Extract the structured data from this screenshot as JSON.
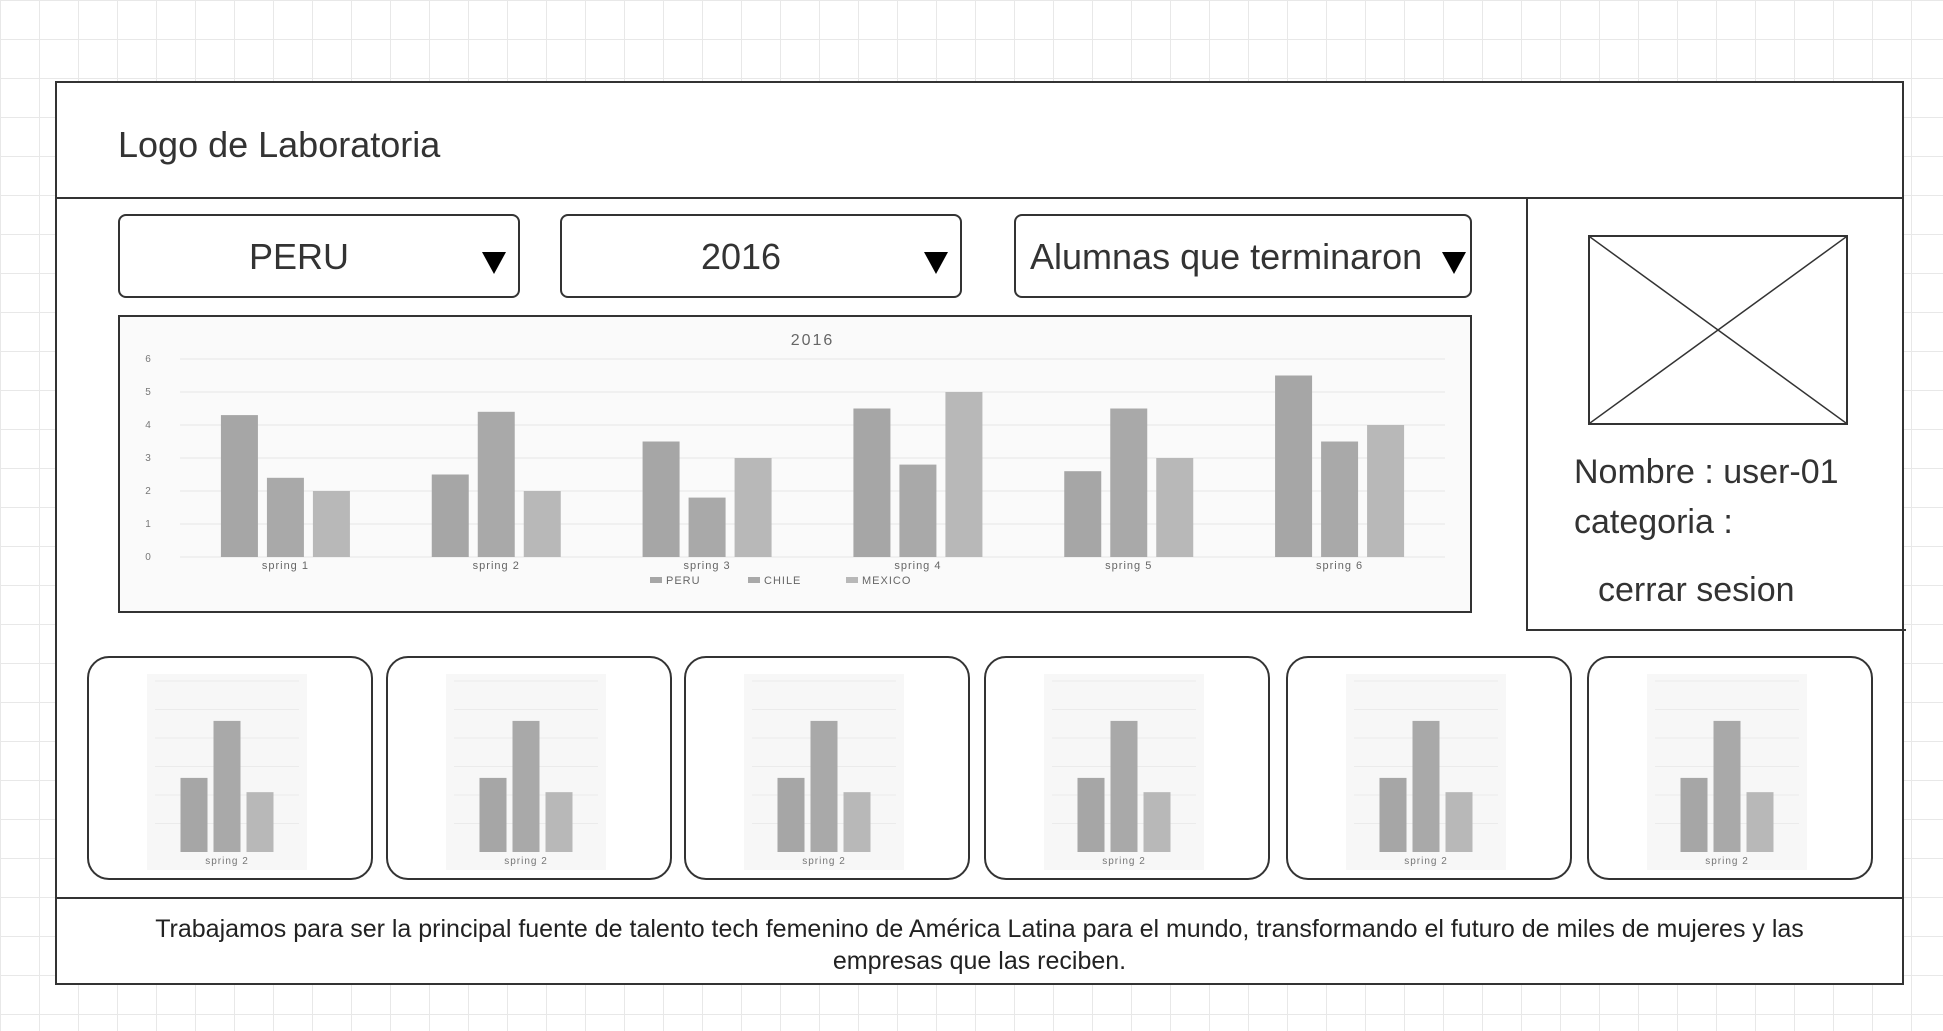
{
  "header": {
    "logo_text": "Logo de Laboratoria"
  },
  "filters": {
    "country": {
      "value": "PERU"
    },
    "year": {
      "value": "2016"
    },
    "metric": {
      "value": "Alumnas que terminaron"
    }
  },
  "chart_data": {
    "type": "bar",
    "title": "2016",
    "categories": [
      "spring 1",
      "spring 2",
      "spring 3",
      "spring 4",
      "spring 5",
      "spring 6"
    ],
    "series": [
      {
        "name": "PERU",
        "values": [
          4.3,
          2.5,
          3.5,
          4.5,
          2.6,
          5.5
        ]
      },
      {
        "name": "CHILE",
        "values": [
          2.4,
          4.4,
          1.8,
          2.8,
          4.5,
          3.5
        ]
      },
      {
        "name": "MEXICO",
        "values": [
          2.0,
          2.0,
          3.0,
          5.0,
          3.0,
          4.0
        ]
      }
    ],
    "yticks": [
      "0",
      "1",
      "2",
      "3",
      "4",
      "5",
      "6"
    ],
    "ylim": [
      0,
      6
    ],
    "legend_position": "bottom",
    "grid": true
  },
  "mini_charts": [
    {
      "label": "spring 2",
      "values": [
        2.6,
        4.6,
        2.1
      ]
    },
    {
      "label": "spring 2",
      "values": [
        2.6,
        4.6,
        2.1
      ]
    },
    {
      "label": "spring 2",
      "values": [
        2.6,
        4.6,
        2.1
      ]
    },
    {
      "label": "spring 2",
      "values": [
        2.6,
        4.6,
        2.1
      ]
    },
    {
      "label": "spring 2",
      "values": [
        2.6,
        4.6,
        2.1
      ]
    },
    {
      "label": "spring 2",
      "values": [
        2.6,
        4.6,
        2.1
      ]
    }
  ],
  "user": {
    "name_line": "Nombre : user-01",
    "category_line": "categoria :",
    "logout_label": "cerrar sesion"
  },
  "footer": {
    "text": "Trabajamos para ser la principal fuente de talento tech femenino de América Latina para el mundo, transformando el futuro de miles de mujeres y las empresas que las reciben."
  },
  "colors": {
    "bar_peru": "#a6a6a6",
    "bar_chile": "#a9a9a9",
    "bar_mexico": "#b8b8b8",
    "border": "#333333"
  }
}
